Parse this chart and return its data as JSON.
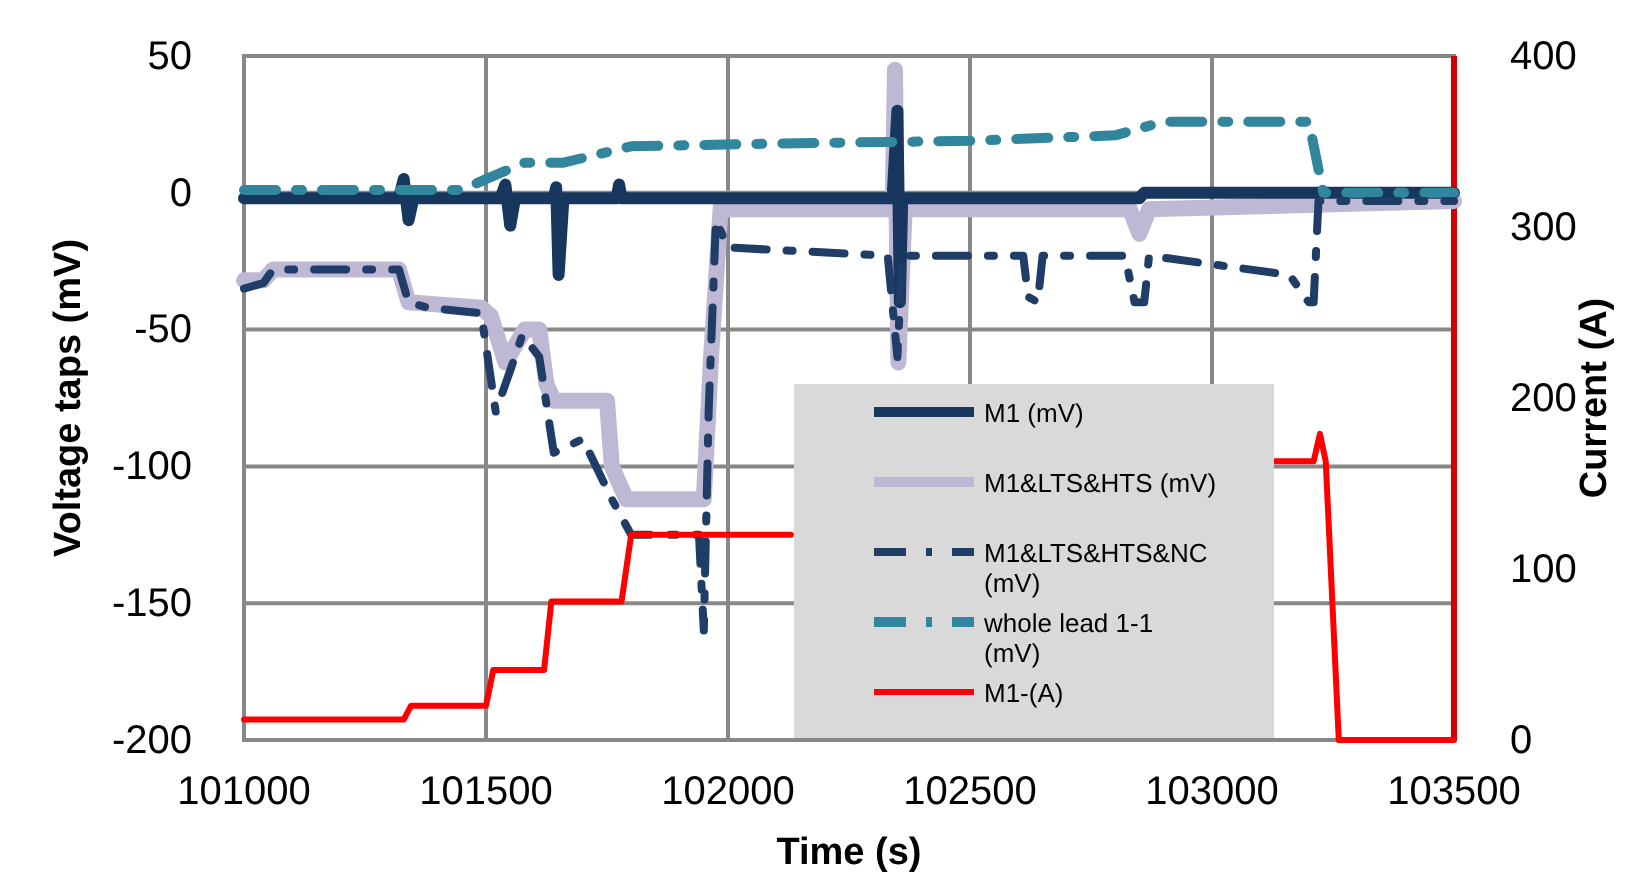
{
  "chart_data": {
    "type": "line",
    "xlabel": "Time (s)",
    "ylabel": "Voltage taps (mV)",
    "y2label": "Current (A)",
    "xlim": [
      101000,
      103500
    ],
    "xticks": [
      101000,
      101500,
      102000,
      102500,
      103000,
      103500
    ],
    "ylim": [
      -200,
      50
    ],
    "yticks": [
      -200,
      -150,
      -100,
      -50,
      0,
      50
    ],
    "y2lim": [
      0,
      400
    ],
    "y2ticks": [
      0,
      100,
      200,
      300,
      400
    ],
    "grid": true,
    "legend": "bottom",
    "series": [
      {
        "name": "M1 (mV)",
        "color": "#17375e",
        "line_style": "solid",
        "x": [
          101000,
          101320,
          101330,
          101340,
          101350,
          101530,
          101540,
          101550,
          101560,
          101640,
          101645,
          101650,
          101660,
          101770,
          101775,
          101780,
          102000,
          102340,
          102350,
          102355,
          102360,
          102850,
          102860,
          103500
        ],
        "values": [
          -2,
          -2,
          5,
          -10,
          -2,
          -2,
          3,
          -12,
          -2,
          -2,
          2,
          -30,
          -2,
          -2,
          3,
          -2,
          -2,
          -2,
          30,
          -40,
          -2,
          -2,
          0,
          0
        ]
      },
      {
        "name": "M1&LTS&HTS (mV)",
        "color": "#bfb8d4",
        "line_style": "solid",
        "x": [
          101000,
          101040,
          101060,
          101320,
          101340,
          101490,
          101510,
          101540,
          101580,
          101610,
          101625,
          101640,
          101750,
          101760,
          101790,
          101950,
          101965,
          101985,
          102000,
          102340,
          102345,
          102352,
          102365,
          102830,
          102850,
          102870,
          103500
        ],
        "values": [
          -32,
          -32,
          -28,
          -28,
          -40,
          -42,
          -45,
          -62,
          -50,
          -50,
          -70,
          -76,
          -76,
          -100,
          -112,
          -112,
          -60,
          -5,
          -6,
          -6,
          45,
          -62,
          -6,
          -6,
          -15,
          -6,
          -3
        ]
      },
      {
        "name": "M1&LTS&HTS&NC (mV)",
        "color": "#1f3d66",
        "line_style": "dashed",
        "x": [
          101000,
          101040,
          101060,
          101320,
          101340,
          101380,
          101490,
          101520,
          101550,
          101575,
          101610,
          101640,
          101700,
          101760,
          101800,
          101940,
          101950,
          101960,
          101975,
          102000,
          102330,
          102350,
          102360,
          102610,
          102620,
          102640,
          102650,
          102820,
          102840,
          102860,
          102870,
          103160,
          103200,
          103210,
          103220,
          103500
        ],
        "values": [
          -35,
          -33,
          -28,
          -28,
          -40,
          -42,
          -44,
          -80,
          -65,
          -52,
          -60,
          -95,
          -90,
          -112,
          -125,
          -125,
          -160,
          -80,
          -10,
          -20,
          -23,
          -60,
          -23,
          -23,
          -38,
          -40,
          -23,
          -23,
          -40,
          -40,
          -23,
          -30,
          -40,
          -40,
          -3,
          -3
        ]
      },
      {
        "name": "whole lead 1-1 (mV)",
        "color": "#31859c",
        "line_style": "dashed",
        "x": [
          101000,
          101350,
          101450,
          101500,
          101580,
          101660,
          101800,
          102100,
          102500,
          102800,
          102900,
          103200,
          103230,
          103500
        ],
        "values": [
          1,
          1,
          1,
          5,
          11,
          11,
          17,
          18,
          19,
          21,
          26,
          26,
          0,
          0
        ]
      },
      {
        "name": "M1-(A)",
        "color": "#ff0000",
        "line_style": "solid",
        "axis": "y2",
        "x": [
          101000,
          101330,
          101345,
          101500,
          101515,
          101620,
          101635,
          101780,
          101800,
          102130,
          102600,
          103130,
          103210,
          103223,
          103235,
          103262,
          103500
        ],
        "values": [
          12,
          12,
          20,
          20,
          41,
          41,
          81,
          81,
          120,
          120,
          null,
          163,
          163,
          179,
          163,
          0,
          0
        ]
      }
    ]
  }
}
